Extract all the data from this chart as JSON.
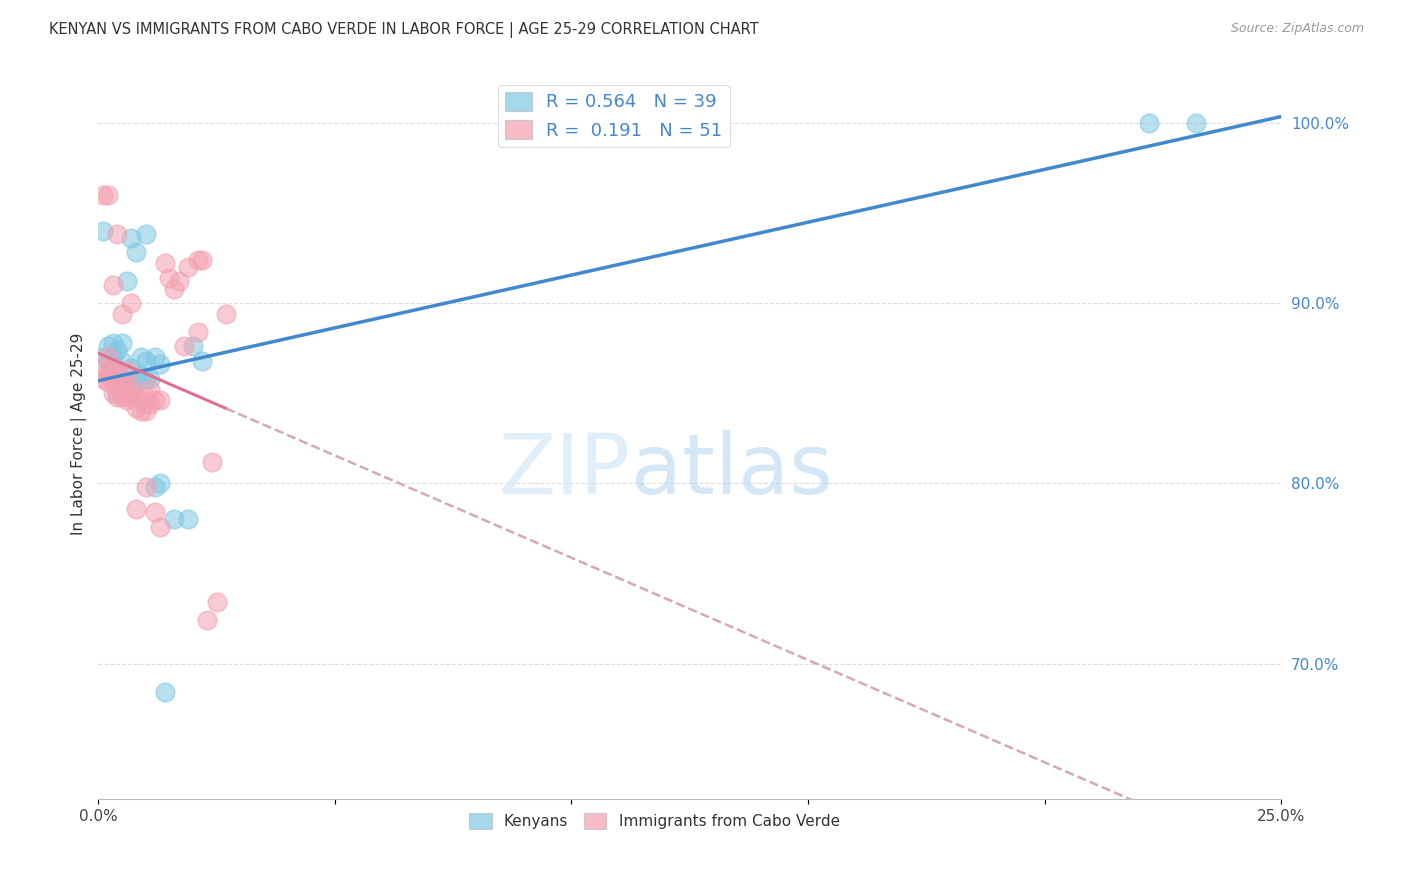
{
  "title": "KENYAN VS IMMIGRANTS FROM CABO VERDE IN LABOR FORCE | AGE 25-29 CORRELATION CHART",
  "source": "Source: ZipAtlas.com",
  "ylabel": "In Labor Force | Age 25-29",
  "y_tick_labels": [
    "70.0%",
    "80.0%",
    "90.0%",
    "100.0%"
  ],
  "y_tick_values": [
    0.7,
    0.8,
    0.9,
    1.0
  ],
  "legend_r1_r": "R = 0.564",
  "legend_r1_n": "N = 39",
  "legend_r2_r": "R =  0.191",
  "legend_r2_n": "N = 51",
  "blue_color": "#7ec8e3",
  "pink_color": "#f4a0b0",
  "trend_blue_color": "#4488cc",
  "trend_pink_color": "#e07090",
  "trend_pink_dash_color": "#d4a8b8",
  "xlim": [
    0.0,
    0.25
  ],
  "ylim": [
    0.625,
    1.03
  ],
  "blue_scatter_x": [
    0.001,
    0.001,
    0.002,
    0.002,
    0.002,
    0.003,
    0.003,
    0.003,
    0.003,
    0.004,
    0.004,
    0.004,
    0.005,
    0.005,
    0.005,
    0.006,
    0.006,
    0.007,
    0.007,
    0.007,
    0.008,
    0.008,
    0.009,
    0.009,
    0.01,
    0.01,
    0.01,
    0.011,
    0.012,
    0.012,
    0.013,
    0.013,
    0.014,
    0.016,
    0.019,
    0.02,
    0.022,
    0.222,
    0.232
  ],
  "blue_scatter_y": [
    0.87,
    0.94,
    0.86,
    0.868,
    0.876,
    0.862,
    0.866,
    0.87,
    0.878,
    0.85,
    0.862,
    0.874,
    0.856,
    0.868,
    0.878,
    0.856,
    0.912,
    0.852,
    0.864,
    0.936,
    0.858,
    0.928,
    0.86,
    0.87,
    0.858,
    0.868,
    0.938,
    0.858,
    0.798,
    0.87,
    0.8,
    0.866,
    0.684,
    0.78,
    0.78,
    0.876,
    0.868,
    1.0,
    1.0
  ],
  "pink_scatter_x": [
    0.001,
    0.001,
    0.001,
    0.002,
    0.002,
    0.002,
    0.002,
    0.003,
    0.003,
    0.003,
    0.003,
    0.004,
    0.004,
    0.004,
    0.004,
    0.005,
    0.005,
    0.005,
    0.006,
    0.006,
    0.006,
    0.007,
    0.007,
    0.007,
    0.008,
    0.008,
    0.008,
    0.009,
    0.009,
    0.01,
    0.01,
    0.01,
    0.011,
    0.011,
    0.012,
    0.012,
    0.013,
    0.013,
    0.014,
    0.015,
    0.016,
    0.017,
    0.018,
    0.019,
    0.021,
    0.021,
    0.022,
    0.023,
    0.024,
    0.025,
    0.027
  ],
  "pink_scatter_y": [
    0.858,
    0.864,
    0.96,
    0.856,
    0.862,
    0.87,
    0.96,
    0.85,
    0.856,
    0.862,
    0.91,
    0.848,
    0.854,
    0.862,
    0.938,
    0.848,
    0.854,
    0.894,
    0.846,
    0.852,
    0.862,
    0.848,
    0.854,
    0.9,
    0.842,
    0.848,
    0.786,
    0.84,
    0.846,
    0.84,
    0.848,
    0.798,
    0.844,
    0.852,
    0.784,
    0.846,
    0.776,
    0.846,
    0.922,
    0.914,
    0.908,
    0.912,
    0.876,
    0.92,
    0.924,
    0.884,
    0.924,
    0.724,
    0.812,
    0.734,
    0.894
  ]
}
